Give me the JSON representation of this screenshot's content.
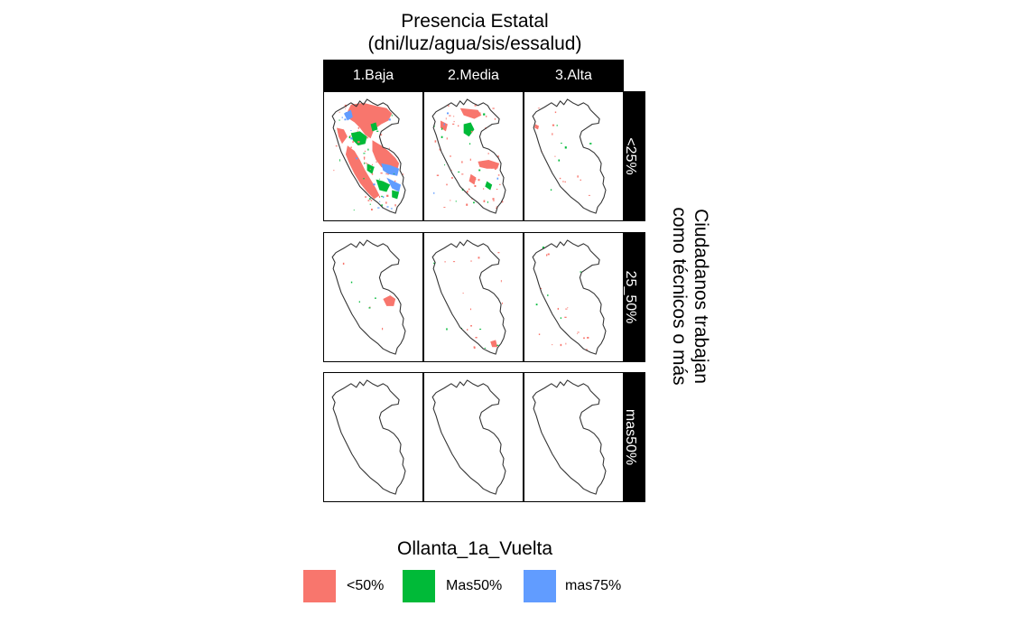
{
  "title_line1": "Presencia Estatal",
  "title_line2": "(dni/luz/agua/sis/essalud)",
  "columns": [
    "1.Baja",
    "2.Media",
    "3.Alta"
  ],
  "rows": [
    "<25%",
    "25_50%",
    "mas50%"
  ],
  "row_title_line1": "Ciudadanos trabajan",
  "row_title_line2": "como técnicos o más",
  "legend": {
    "title": "Ollanta_1a_Vuelta",
    "items": [
      {
        "label": "<50%",
        "color": "#F8766D"
      },
      {
        "label": "Mas50%",
        "color": "#00BA38"
      },
      {
        "label": "mas75%",
        "color": "#619CFF"
      }
    ]
  },
  "outline_color": "#333333"
}
